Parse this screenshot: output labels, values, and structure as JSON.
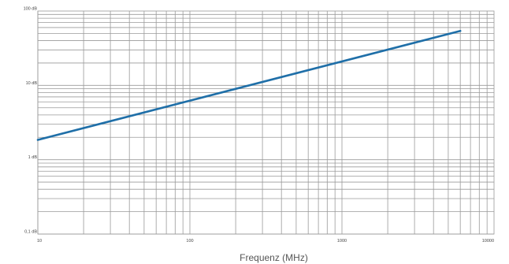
{
  "chart_data": {
    "type": "line",
    "title": "",
    "xlabel": "Frequenz (MHz)",
    "ylabel": "",
    "x_scale": "log",
    "y_scale": "log",
    "xlim": [
      10,
      10000
    ],
    "ylim": [
      0.1,
      100
    ],
    "x_ticks": [
      {
        "value": 10,
        "label": "10"
      },
      {
        "value": 100,
        "label": "100"
      },
      {
        "value": 1000,
        "label": "1000"
      },
      {
        "value": 10000,
        "label": "10000"
      }
    ],
    "y_ticks": [
      {
        "value": 0.1,
        "label": "0,1 dB"
      },
      {
        "value": 1,
        "label": "1 dB"
      },
      {
        "value": 10,
        "label": "10 dB"
      },
      {
        "value": 100,
        "label": "100 dB"
      }
    ],
    "grid": true,
    "legend": "none",
    "series": [
      {
        "color": "#1f6fa8",
        "x": [
          10,
          6000
        ],
        "y": [
          1.85,
          54
        ]
      }
    ]
  }
}
